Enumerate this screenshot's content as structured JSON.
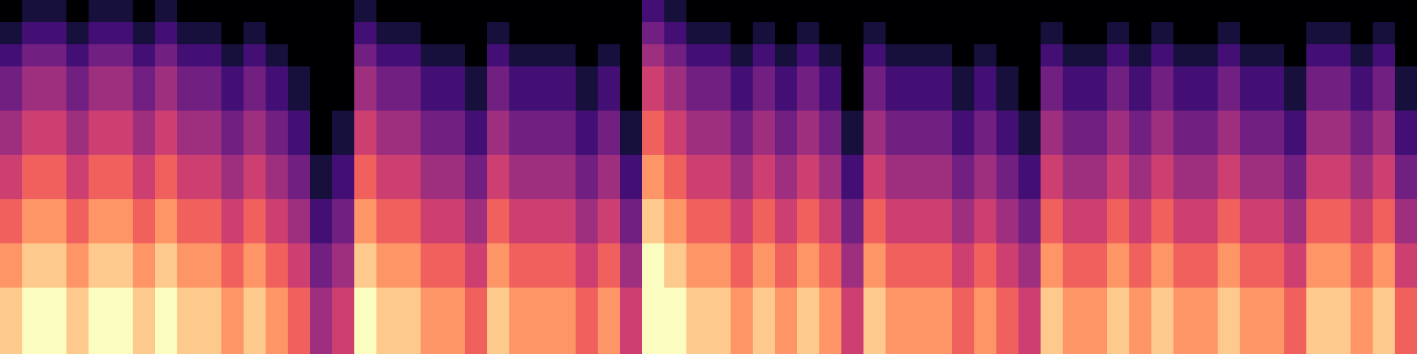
{
  "chart_data": {
    "type": "heatmap",
    "color": "magma",
    "tick_labels": false,
    "value_range": [
      0,
      9
    ],
    "cells": [
      [
        0,
        1,
        1,
        0,
        1,
        1,
        0,
        1,
        0,
        0,
        0,
        0,
        0,
        0,
        0,
        0,
        1,
        0,
        0,
        0,
        0,
        0,
        0,
        0,
        0,
        0,
        0,
        0,
        0,
        2,
        1,
        0,
        0,
        0,
        0,
        0,
        0,
        0,
        0,
        0,
        0,
        0,
        0,
        0,
        0,
        0,
        0,
        0,
        0,
        0,
        0,
        0,
        0,
        0,
        0,
        0,
        0,
        0,
        0,
        0,
        0,
        0,
        0,
        0
      ],
      [
        1,
        2,
        2,
        1,
        2,
        2,
        1,
        2,
        1,
        1,
        0,
        1,
        0,
        0,
        0,
        0,
        2,
        1,
        1,
        0,
        0,
        0,
        1,
        0,
        0,
        0,
        0,
        0,
        0,
        3,
        2,
        1,
        1,
        0,
        1,
        0,
        1,
        0,
        0,
        1,
        0,
        0,
        0,
        0,
        0,
        0,
        0,
        1,
        0,
        0,
        1,
        0,
        1,
        0,
        0,
        1,
        0,
        0,
        0,
        1,
        1,
        0,
        1,
        0
      ],
      [
        2,
        3,
        3,
        2,
        3,
        3,
        2,
        3,
        2,
        2,
        1,
        2,
        1,
        0,
        0,
        0,
        3,
        2,
        2,
        1,
        1,
        0,
        2,
        1,
        1,
        1,
        0,
        1,
        0,
        4,
        3,
        2,
        2,
        1,
        2,
        1,
        2,
        1,
        0,
        2,
        1,
        1,
        1,
        0,
        1,
        0,
        0,
        2,
        1,
        1,
        2,
        1,
        2,
        1,
        1,
        2,
        1,
        1,
        0,
        2,
        2,
        1,
        2,
        0
      ],
      [
        3,
        4,
        4,
        3,
        4,
        4,
        3,
        4,
        3,
        3,
        2,
        3,
        2,
        1,
        0,
        0,
        4,
        3,
        3,
        2,
        2,
        1,
        3,
        2,
        2,
        2,
        1,
        2,
        0,
        5,
        4,
        3,
        3,
        2,
        3,
        2,
        3,
        2,
        0,
        3,
        2,
        2,
        2,
        1,
        2,
        1,
        0,
        3,
        2,
        2,
        3,
        2,
        3,
        2,
        2,
        3,
        2,
        2,
        1,
        3,
        3,
        2,
        3,
        1
      ],
      [
        3,
        4,
        4,
        3,
        4,
        4,
        3,
        4,
        3,
        3,
        2,
        3,
        2,
        1,
        0,
        0,
        4,
        3,
        3,
        2,
        2,
        1,
        3,
        2,
        2,
        2,
        1,
        2,
        0,
        5,
        4,
        3,
        3,
        2,
        3,
        2,
        3,
        2,
        0,
        3,
        2,
        2,
        2,
        1,
        2,
        1,
        0,
        3,
        2,
        2,
        3,
        2,
        3,
        2,
        2,
        3,
        2,
        2,
        1,
        3,
        3,
        2,
        3,
        1
      ],
      [
        4,
        5,
        5,
        4,
        5,
        5,
        4,
        5,
        4,
        4,
        3,
        4,
        3,
        2,
        0,
        1,
        5,
        4,
        4,
        3,
        3,
        2,
        4,
        3,
        3,
        3,
        2,
        3,
        1,
        6,
        5,
        4,
        4,
        3,
        4,
        3,
        4,
        3,
        1,
        4,
        3,
        3,
        3,
        2,
        3,
        2,
        1,
        4,
        3,
        3,
        4,
        3,
        4,
        3,
        3,
        4,
        3,
        3,
        2,
        4,
        4,
        3,
        4,
        2
      ],
      [
        4,
        5,
        5,
        4,
        5,
        5,
        4,
        5,
        4,
        4,
        3,
        4,
        3,
        2,
        0,
        1,
        5,
        4,
        4,
        3,
        3,
        2,
        4,
        3,
        3,
        3,
        2,
        3,
        1,
        6,
        5,
        4,
        4,
        3,
        4,
        3,
        4,
        3,
        1,
        4,
        3,
        3,
        3,
        2,
        3,
        2,
        1,
        4,
        3,
        3,
        4,
        3,
        4,
        3,
        3,
        4,
        3,
        3,
        2,
        4,
        4,
        3,
        4,
        2
      ],
      [
        5,
        6,
        6,
        5,
        6,
        6,
        5,
        6,
        5,
        5,
        4,
        5,
        4,
        3,
        1,
        2,
        6,
        5,
        5,
        4,
        4,
        3,
        5,
        4,
        4,
        4,
        3,
        4,
        2,
        7,
        6,
        5,
        5,
        4,
        5,
        4,
        5,
        4,
        2,
        5,
        4,
        4,
        4,
        3,
        4,
        3,
        2,
        5,
        4,
        4,
        5,
        4,
        5,
        4,
        4,
        5,
        4,
        4,
        3,
        5,
        5,
        4,
        5,
        3
      ],
      [
        5,
        6,
        6,
        5,
        6,
        6,
        5,
        6,
        5,
        5,
        4,
        5,
        4,
        3,
        1,
        2,
        6,
        5,
        5,
        4,
        4,
        3,
        5,
        4,
        4,
        4,
        3,
        4,
        2,
        7,
        6,
        5,
        5,
        4,
        5,
        4,
        5,
        4,
        2,
        5,
        4,
        4,
        4,
        3,
        4,
        3,
        2,
        5,
        4,
        4,
        5,
        4,
        5,
        4,
        4,
        5,
        4,
        4,
        3,
        5,
        5,
        4,
        5,
        3
      ],
      [
        6,
        7,
        7,
        6,
        7,
        7,
        6,
        7,
        6,
        6,
        5,
        6,
        5,
        4,
        2,
        3,
        7,
        6,
        6,
        5,
        5,
        4,
        6,
        5,
        5,
        5,
        4,
        5,
        3,
        8,
        7,
        6,
        6,
        5,
        6,
        5,
        6,
        5,
        3,
        6,
        5,
        5,
        5,
        4,
        5,
        4,
        3,
        6,
        5,
        5,
        6,
        5,
        6,
        5,
        5,
        6,
        5,
        5,
        4,
        6,
        6,
        5,
        6,
        4
      ],
      [
        6,
        7,
        7,
        6,
        7,
        7,
        6,
        7,
        6,
        6,
        5,
        6,
        5,
        4,
        2,
        3,
        7,
        6,
        6,
        5,
        5,
        4,
        6,
        5,
        5,
        5,
        4,
        5,
        3,
        8,
        7,
        6,
        6,
        5,
        6,
        5,
        6,
        5,
        3,
        6,
        5,
        5,
        5,
        4,
        5,
        4,
        3,
        6,
        5,
        5,
        6,
        5,
        6,
        5,
        5,
        6,
        5,
        5,
        4,
        6,
        6,
        5,
        6,
        4
      ],
      [
        7,
        8,
        8,
        7,
        8,
        8,
        7,
        8,
        7,
        7,
        6,
        7,
        6,
        5,
        3,
        4,
        8,
        7,
        7,
        6,
        6,
        5,
        7,
        6,
        6,
        6,
        5,
        6,
        4,
        9,
        8,
        7,
        7,
        6,
        7,
        6,
        7,
        6,
        4,
        7,
        6,
        6,
        6,
        5,
        6,
        5,
        4,
        7,
        6,
        6,
        7,
        6,
        7,
        6,
        6,
        7,
        6,
        6,
        5,
        7,
        7,
        6,
        7,
        5
      ],
      [
        7,
        8,
        8,
        7,
        8,
        8,
        7,
        8,
        7,
        7,
        6,
        7,
        6,
        5,
        3,
        4,
        8,
        7,
        7,
        6,
        6,
        5,
        7,
        6,
        6,
        6,
        5,
        6,
        4,
        9,
        8,
        7,
        7,
        6,
        7,
        6,
        7,
        6,
        4,
        7,
        6,
        6,
        6,
        5,
        6,
        5,
        4,
        7,
        6,
        6,
        7,
        6,
        7,
        6,
        6,
        7,
        6,
        6,
        5,
        7,
        7,
        6,
        7,
        5
      ],
      [
        8,
        9,
        9,
        8,
        9,
        9,
        8,
        9,
        8,
        8,
        7,
        8,
        7,
        6,
        4,
        5,
        9,
        8,
        8,
        7,
        7,
        6,
        8,
        7,
        7,
        7,
        6,
        7,
        5,
        9,
        9,
        8,
        8,
        7,
        8,
        7,
        8,
        7,
        5,
        8,
        7,
        7,
        7,
        6,
        7,
        6,
        5,
        8,
        7,
        7,
        8,
        7,
        8,
        7,
        7,
        8,
        7,
        7,
        6,
        8,
        8,
        7,
        8,
        6
      ],
      [
        8,
        9,
        9,
        8,
        9,
        9,
        8,
        9,
        8,
        8,
        7,
        8,
        7,
        6,
        4,
        5,
        9,
        8,
        8,
        7,
        7,
        6,
        8,
        7,
        7,
        7,
        6,
        7,
        5,
        9,
        9,
        8,
        8,
        7,
        8,
        7,
        8,
        7,
        5,
        8,
        7,
        7,
        7,
        6,
        7,
        6,
        5,
        8,
        7,
        7,
        8,
        7,
        8,
        7,
        7,
        8,
        7,
        7,
        6,
        8,
        8,
        7,
        8,
        6
      ],
      [
        8,
        9,
        9,
        8,
        9,
        9,
        8,
        9,
        8,
        8,
        7,
        8,
        7,
        6,
        4,
        5,
        9,
        8,
        8,
        7,
        7,
        6,
        8,
        7,
        7,
        7,
        6,
        7,
        5,
        9,
        9,
        8,
        8,
        7,
        8,
        7,
        8,
        7,
        5,
        8,
        7,
        7,
        7,
        6,
        7,
        6,
        5,
        8,
        7,
        7,
        8,
        7,
        8,
        7,
        7,
        8,
        7,
        7,
        6,
        8,
        8,
        7,
        8,
        6
      ]
    ]
  }
}
